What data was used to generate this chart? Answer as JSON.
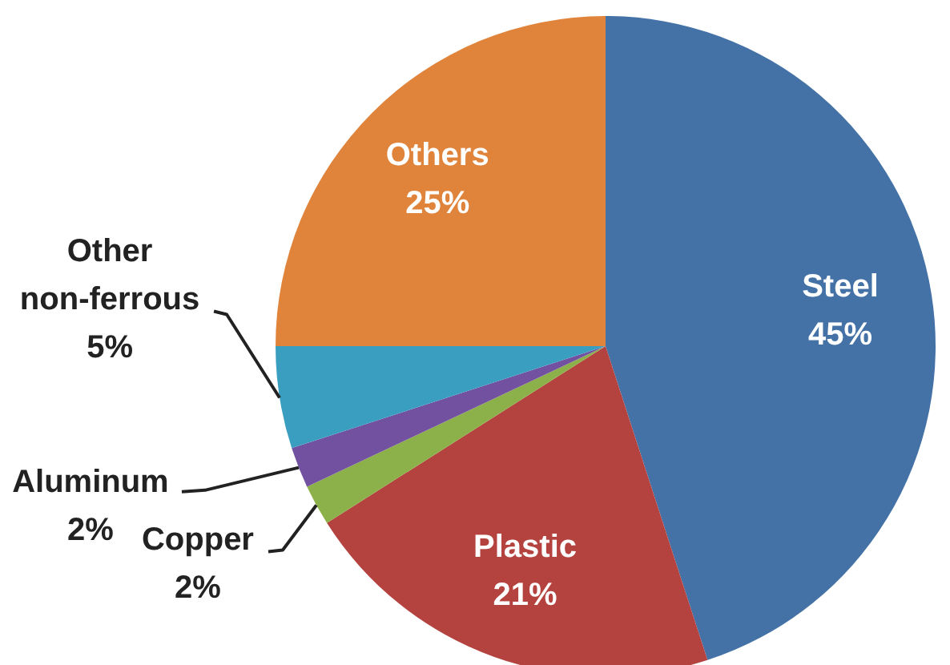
{
  "chart_data": {
    "type": "pie",
    "categories": [
      "Steel",
      "Plastic",
      "Copper",
      "Aluminum",
      "Other non-ferrous",
      "Others"
    ],
    "values": [
      45,
      21,
      2,
      2,
      5,
      25
    ],
    "colors": [
      "#4472a6",
      "#b4423f",
      "#8cb04a",
      "#7252a0",
      "#3a9ec0",
      "#e0843c"
    ],
    "value_labels": [
      "45%",
      "21%",
      "2%",
      "2%",
      "5%",
      "25%"
    ]
  }
}
